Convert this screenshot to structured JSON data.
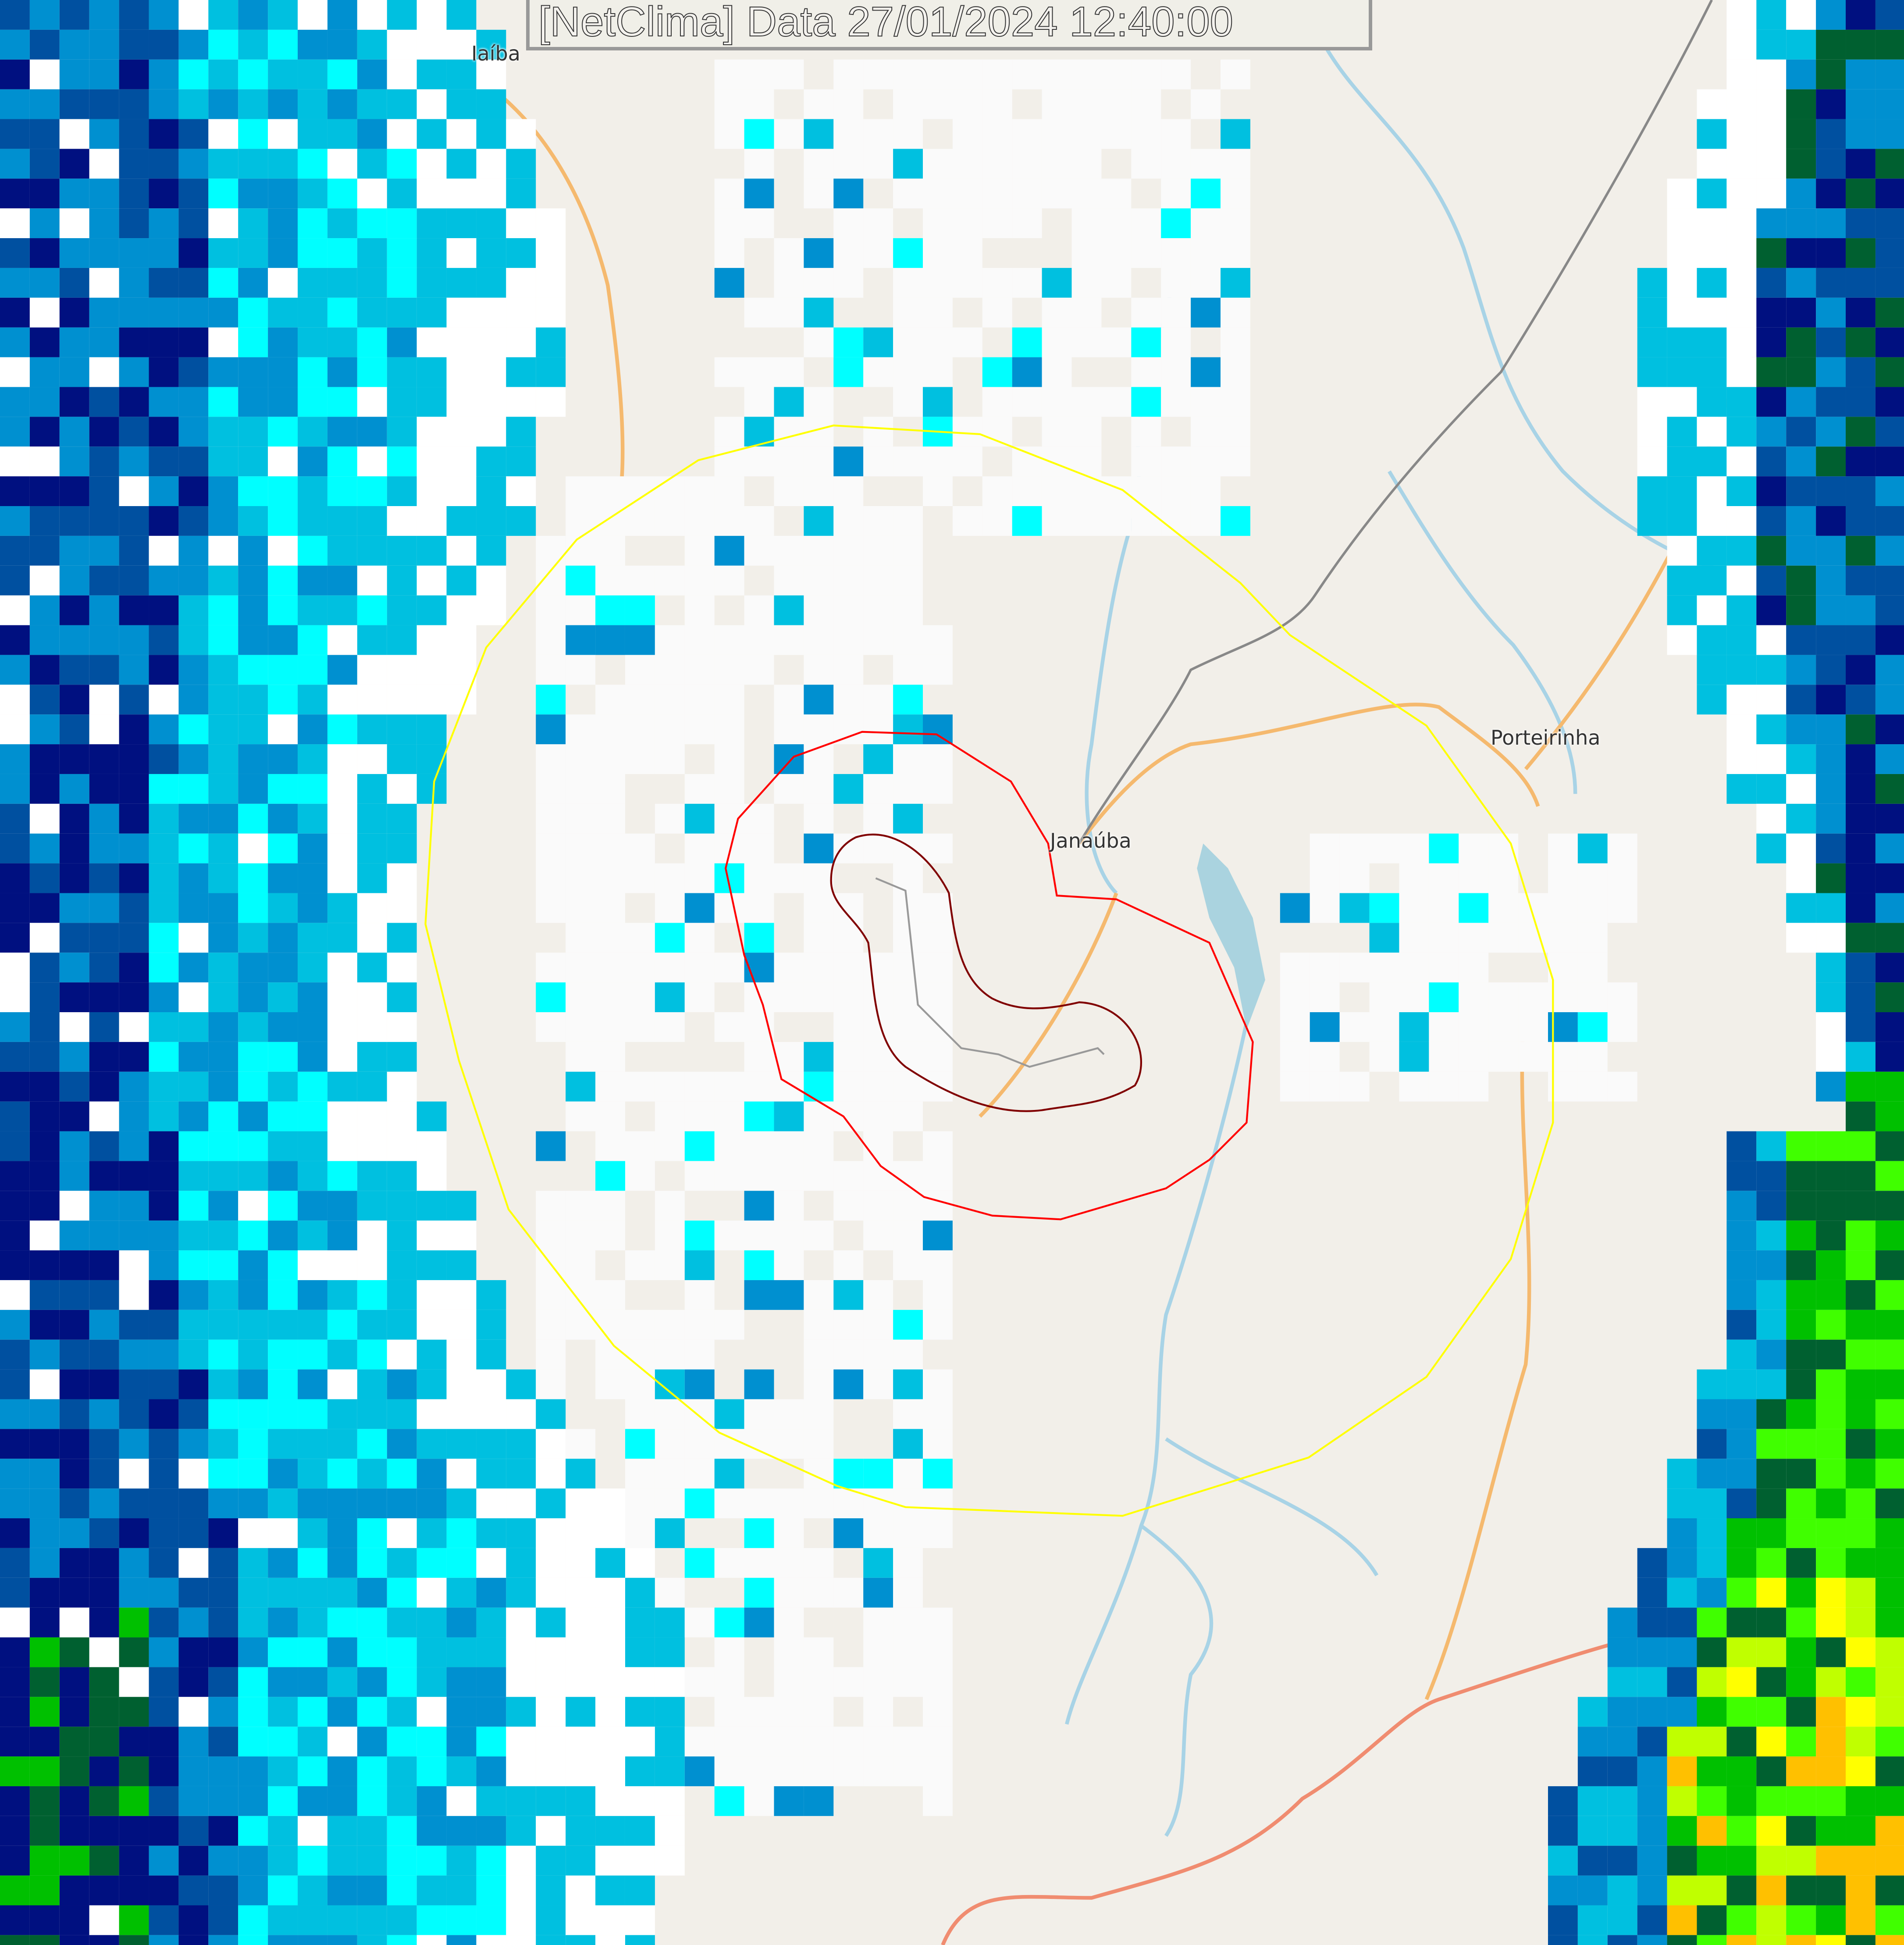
{
  "title": "[NetClima] Data 27/01/2024 12:40:00",
  "cities": [
    {
      "name": "Iaíba"
    },
    {
      "name": "Janaúba"
    },
    {
      "name": "Porteirinha"
    }
  ],
  "colors": {
    "background": "#f2efe9",
    "range_ring_outer": "#ffff00",
    "range_ring_mid": "#ff0000",
    "range_ring_inner": "#800000",
    "river": "#a8d3e6",
    "road": "#f5b96e",
    "highway": "#f08c70",
    "radar_scale": [
      "#ffffff",
      "#00ffff",
      "#00c0e0",
      "#0090d0",
      "#0050a0",
      "#001080",
      "#006030",
      "#00c000",
      "#40ff00",
      "#c0ff00",
      "#ffff00",
      "#ffc000",
      "#ff9000"
    ]
  }
}
